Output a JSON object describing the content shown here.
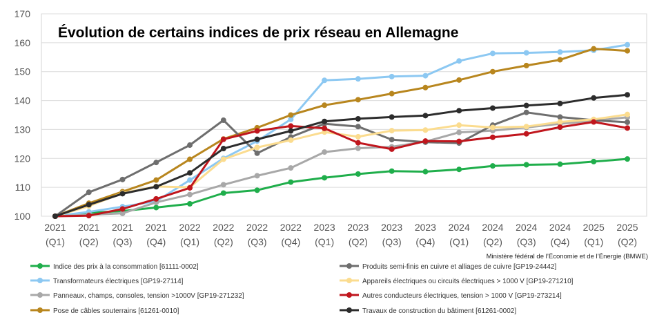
{
  "chart_data": {
    "type": "line",
    "title": "Évolution de certains indices de prix réseau en Allemagne",
    "source": "Ministère fédéral de l’Économie et de l’Énergie (BMWE)",
    "xlabel": "",
    "ylabel": "",
    "ylim": [
      100,
      170
    ],
    "yticks": [
      100,
      110,
      120,
      130,
      140,
      150,
      160,
      170
    ],
    "grid": true,
    "legend_position": "bottom",
    "categories": [
      {
        "year": "2021",
        "quarter": "(Q1)"
      },
      {
        "year": "2021",
        "quarter": "(Q2)"
      },
      {
        "year": "2021",
        "quarter": "(Q3)"
      },
      {
        "year": "2021",
        "quarter": "(Q4)"
      },
      {
        "year": "2022",
        "quarter": "(Q1)"
      },
      {
        "year": "2022",
        "quarter": "(Q2)"
      },
      {
        "year": "2022",
        "quarter": "(Q3)"
      },
      {
        "year": "2022",
        "quarter": "(Q4)"
      },
      {
        "year": "2023",
        "quarter": "(Q1)"
      },
      {
        "year": "2023",
        "quarter": "(Q2)"
      },
      {
        "year": "2023",
        "quarter": "(Q3)"
      },
      {
        "year": "2023",
        "quarter": "(Q4)"
      },
      {
        "year": "2024",
        "quarter": "(Q1)"
      },
      {
        "year": "2024",
        "quarter": "(Q2)"
      },
      {
        "year": "2024",
        "quarter": "(Q3)"
      },
      {
        "year": "2024",
        "quarter": "(Q4)"
      },
      {
        "year": "2025",
        "quarter": "(Q1)"
      },
      {
        "year": "2025",
        "quarter": "(Q2)"
      }
    ],
    "series": [
      {
        "name": "Indice des prix à la consommation [61111-0002]",
        "color": "#1fae4b",
        "values": [
          100,
          101.2,
          101.8,
          103,
          104.3,
          108,
          109,
          111.8,
          113.3,
          114.6,
          115.6,
          115.4,
          116.2,
          117.4,
          117.8,
          118,
          118.9,
          119.8
        ]
      },
      {
        "name": "Transformateurs électriques [GP19-27114]",
        "color": "#8cc8f2",
        "values": [
          100,
          101.5,
          103.3,
          105.2,
          112.5,
          120,
          126,
          133.5,
          147,
          147.5,
          148.3,
          148.6,
          153.7,
          156.3,
          156.5,
          156.8,
          157.4,
          159.3
        ]
      },
      {
        "name": "Panneaux, champs, consoles, tension >1000V [GP19-271232]",
        "color": "#a8a8a8",
        "values": [
          100,
          100.5,
          101,
          104.8,
          107.5,
          110.9,
          114,
          116.7,
          122.2,
          123.5,
          124,
          125.8,
          129,
          129.6,
          130.7,
          132,
          133,
          134.2
        ]
      },
      {
        "name": "Pose de câbles souterrains [61261-0010]",
        "color": "#b8861e",
        "values": [
          100,
          104.5,
          108.5,
          112.5,
          119.7,
          126.7,
          130.6,
          135,
          138.4,
          140.3,
          142.4,
          144.5,
          147.1,
          150,
          152.1,
          154.1,
          157.9,
          157.2
        ]
      },
      {
        "name": "Produits semi-finis en cuivre et alliages de cuivre [GP19-24442]",
        "color": "#6e6e6e",
        "values": [
          100,
          108.3,
          112.7,
          118.6,
          124.6,
          133.2,
          121.8,
          127.4,
          132,
          131,
          126.5,
          125.6,
          125.3,
          131.5,
          135.9,
          134.3,
          133.2,
          132.5
        ]
      },
      {
        "name": "Appareils électriques ou circuits électriques > 1000 V [GP19-271210]",
        "color": "#fbdc8f",
        "values": [
          100,
          103.5,
          108,
          110.3,
          110,
          119.7,
          123.8,
          126.3,
          129.1,
          127.5,
          129.6,
          129.8,
          131.5,
          130.7,
          131,
          132.6,
          133.5,
          135.2
        ]
      },
      {
        "name": "Autres conducteurs électriques, tension > 1000 V [GP19-273214]",
        "color": "#c0161d",
        "values": [
          100,
          100.2,
          102.5,
          106,
          109.8,
          126.6,
          129.5,
          131.2,
          130.4,
          125.4,
          123.2,
          126,
          125.9,
          127.3,
          128.5,
          130.8,
          132.6,
          130.5
        ]
      },
      {
        "name": "Travaux de construction du bâtiment [61261-0002]",
        "color": "#2c2c2c",
        "values": [
          100,
          104,
          107.8,
          110.2,
          115,
          123.4,
          126.6,
          129.5,
          132.8,
          133.7,
          134.3,
          134.8,
          136.5,
          137.4,
          138.3,
          139,
          140.9,
          142
        ]
      }
    ]
  }
}
